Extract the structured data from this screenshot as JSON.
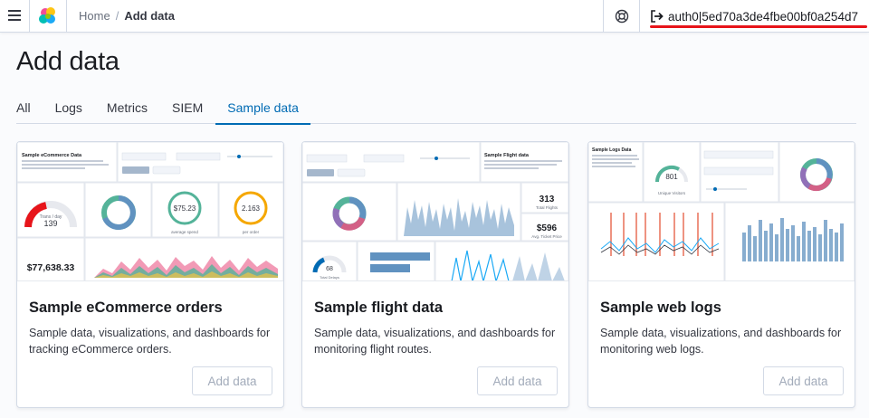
{
  "header": {
    "breadcrumbs": {
      "home": "Home",
      "separator": "/",
      "current": "Add data"
    },
    "user": {
      "name": "auth0|5ed70a3de4fbe00bf0a254d7"
    }
  },
  "page": {
    "title": "Add data",
    "tabs": [
      {
        "label": "All"
      },
      {
        "label": "Logs"
      },
      {
        "label": "Metrics"
      },
      {
        "label": "SIEM"
      },
      {
        "label": "Sample data",
        "selected": true
      }
    ]
  },
  "cards": [
    {
      "title": "Sample eCommerce orders",
      "description": "Sample data, visualizations, and dashboards for tracking eCommerce orders.",
      "button": "Add data",
      "preview": {
        "title": "Sample eCommerce Data",
        "gauge_value": "139",
        "gauge_label": "Trans / day",
        "avg_sales": "$75.23",
        "avg_sales_label": "average spend",
        "avg_items": "2.163",
        "avg_items_label": "per order",
        "total_revenue": "$77,638.33"
      }
    },
    {
      "title": "Sample flight data",
      "description": "Sample data, visualizations, and dashboards for monitoring flight routes.",
      "button": "Add data",
      "preview": {
        "title": "Sample Flight data",
        "total_flights": "313",
        "total_flights_label": "Total Flights",
        "avg_price": "$596",
        "avg_price_label": "Avg. Ticket Price",
        "delays": "68",
        "delays_label": "Total Delays"
      }
    },
    {
      "title": "Sample web logs",
      "description": "Sample data, visualizations, and dashboards for monitoring web logs.",
      "button": "Add data",
      "preview": {
        "title": "Sample Logs Data",
        "gauge_value": "801",
        "gauge_label": "Unique Visitors"
      }
    }
  ],
  "colors": {
    "accent": "#006bb4",
    "highlight_underline": "#e7141a"
  }
}
